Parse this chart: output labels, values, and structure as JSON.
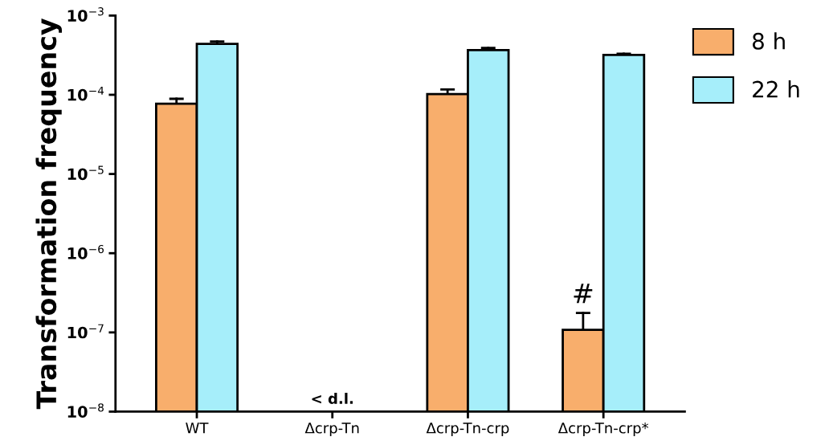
{
  "chart_data": {
    "type": "bar",
    "ylabel": "Transformation frequency",
    "categories": [
      "WT",
      "Δcrp-Tn",
      "Δcrp-Tn-crp",
      "Δcrp-Tn-crp*"
    ],
    "series": [
      {
        "name": "8 h",
        "color": "#f8ae6c",
        "values": [
          7.7e-05,
          null,
          0.000102,
          1.08e-07
        ],
        "errors": [
          [
            7.7e-05,
            8.9e-05
          ],
          null,
          [
            0.000102,
            0.000117
          ],
          [
            1.08e-07,
            1.76e-07
          ]
        ]
      },
      {
        "name": "22 h",
        "color": "#a6eefa",
        "values": [
          0.00044,
          null,
          0.000367,
          0.000319
        ],
        "errors": [
          [
            0.00044,
            0.00047
          ],
          null,
          [
            0.000367,
            0.00039
          ],
          [
            0.000319,
            0.00033
          ]
        ]
      }
    ],
    "log": "y",
    "ylim": [
      1e-08,
      0.001
    ],
    "yticks": [
      {
        "value": 1e-08,
        "label": "10$^{−8}$"
      },
      {
        "value": 1e-07,
        "label": "10$^{−7}$"
      },
      {
        "value": 1e-06,
        "label": "10$^{−6}$"
      },
      {
        "value": 1e-05,
        "label": "10$^{−5}$"
      },
      {
        "value": 0.0001,
        "label": "10$^{−4}$"
      },
      {
        "value": 0.001,
        "label": "10$^{−3}$"
      }
    ],
    "annotations": [
      "< d.l.",
      {
        "text": "#",
        "x": "Δcrp-Tn-crp*",
        "y": 1.76e-07
      }
    ],
    "legend": "top right",
    "grid": false
  }
}
